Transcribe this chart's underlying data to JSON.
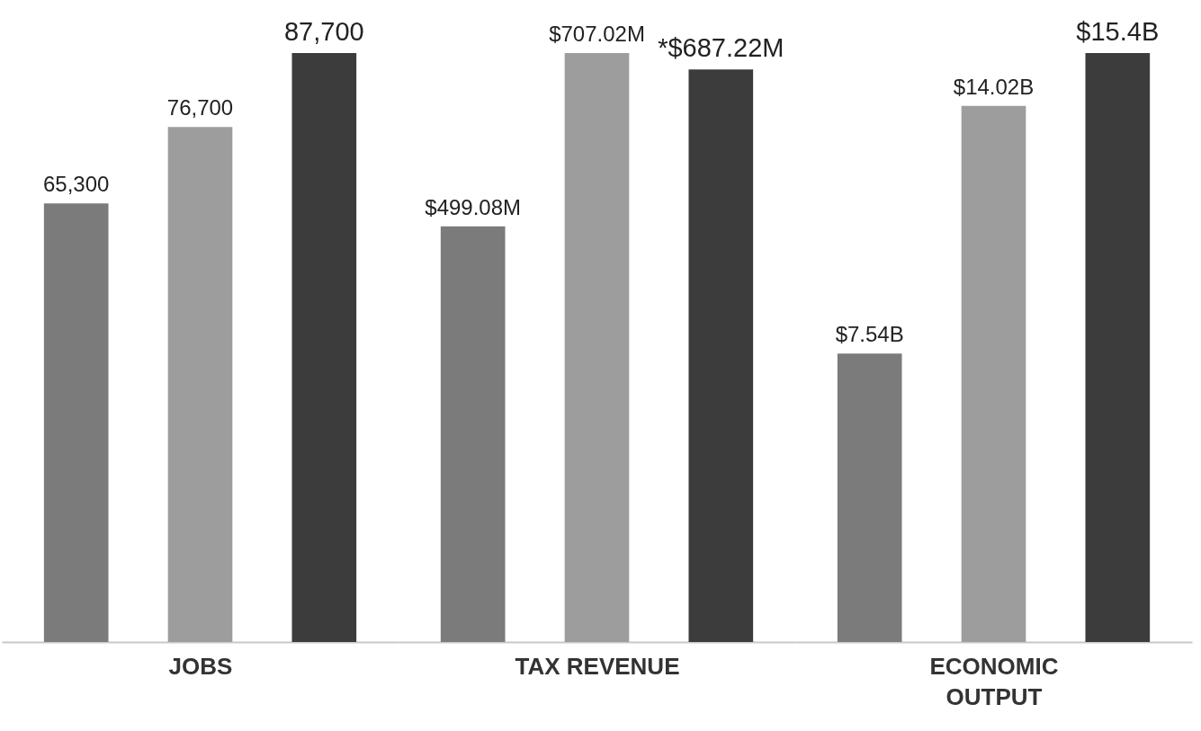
{
  "chart_data": [
    {
      "type": "bar",
      "categories": [
        null,
        null,
        null
      ],
      "xlabel": "JOBS",
      "tick_labels": false,
      "grid": false,
      "values": [
        65300,
        76700,
        87700
      ],
      "colors": [
        "#7b7b7b",
        "#9d9d9d",
        "#3c3c3c"
      ],
      "value_labels": [
        "65,300",
        "76,700",
        "87,700"
      ]
    },
    {
      "type": "bar",
      "categories": [
        null,
        null,
        null
      ],
      "xlabel": "TAX REVENUE",
      "tick_labels": false,
      "grid": false,
      "values": [
        499.08,
        707.02,
        687.22
      ],
      "colors": [
        "#7b7b7b",
        "#9d9d9d",
        "#3c3c3c"
      ],
      "value_labels": [
        "$499.08M",
        "$707.02M",
        "*$687.22M"
      ]
    },
    {
      "type": "bar",
      "categories": [
        null,
        null,
        null
      ],
      "xlabel": "ECONOMIC OUTPUT",
      "tick_labels": false,
      "grid": false,
      "values": [
        7.54,
        14.02,
        15.4
      ],
      "colors": [
        "#7b7b7b",
        "#9d9d9d",
        "#3c3c3c"
      ],
      "value_labels": [
        "$7.54B",
        "$14.02B",
        "$15.4B"
      ]
    }
  ]
}
